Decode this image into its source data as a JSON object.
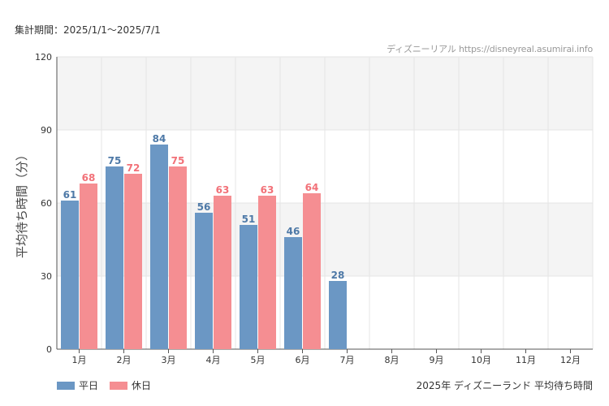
{
  "period_text": "集計期間：2025/1/1～2025/7/1",
  "credit_text": "ディズニーリアル https://disneyreal.asumirai.info",
  "caption_text": "2025年 ディズニーランド 平均待ち時間",
  "colors": {
    "weekday": "#6b97c4",
    "holiday": "#f58e92",
    "weekday_label": "#4e79a7",
    "holiday_label": "#f27178",
    "band": "#f4f4f4",
    "grid": "#e5e5e5",
    "axis": "#555555"
  },
  "chart_data": {
    "type": "bar",
    "title": "",
    "xlabel": "",
    "ylabel": "平均待ち時間（分）",
    "categories": [
      "1月",
      "2月",
      "3月",
      "4月",
      "5月",
      "6月",
      "7月",
      "8月",
      "9月",
      "10月",
      "11月",
      "12月"
    ],
    "series": [
      {
        "name": "平日",
        "values": [
          61,
          75,
          84,
          56,
          51,
          46,
          28,
          null,
          null,
          null,
          null,
          null
        ]
      },
      {
        "name": "休日",
        "values": [
          68,
          72,
          75,
          63,
          63,
          64,
          null,
          null,
          null,
          null,
          null,
          null
        ]
      }
    ],
    "ylim": [
      0,
      120
    ],
    "yticks": [
      0,
      30,
      60,
      90,
      120
    ],
    "grid": true,
    "legend": "bottom-left"
  }
}
